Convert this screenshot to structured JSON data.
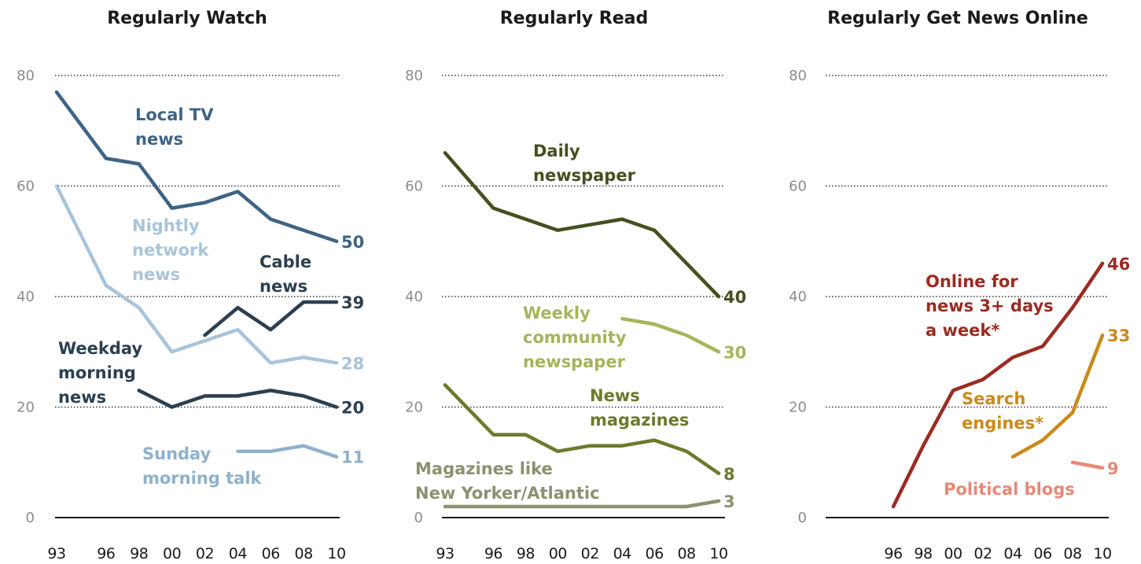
{
  "chart_data": [
    {
      "type": "line",
      "title": "Regularly Watch",
      "ylim": [
        0,
        80
      ],
      "yticks": [
        "0",
        "20",
        "40",
        "60",
        "80"
      ],
      "grid": true,
      "x_labels": [
        "93",
        "96",
        "98",
        "00",
        "02",
        "04",
        "06",
        "08",
        "10"
      ],
      "series": [
        {
          "name": "Local TV news",
          "color": "#3f6484",
          "x": [
            1993,
            1996,
            1998,
            2000,
            2002,
            2004,
            2006,
            2008,
            2010
          ],
          "values": [
            77,
            65,
            64,
            56,
            57,
            59,
            54,
            52,
            50
          ],
          "end_label": "50",
          "label_lines": [
            "Local TV",
            "news"
          ]
        },
        {
          "name": "Nightly network news",
          "color": "#a9c4d9",
          "x": [
            1993,
            1996,
            1998,
            2000,
            2002,
            2004,
            2006,
            2008,
            2010
          ],
          "values": [
            60,
            42,
            38,
            30,
            32,
            34,
            28,
            29,
            28
          ],
          "end_label": "28",
          "label_lines": [
            "Nightly",
            "network",
            "news"
          ]
        },
        {
          "name": "Cable news",
          "color": "#2b3f4f",
          "x": [
            2002,
            2004,
            2006,
            2008,
            2010
          ],
          "values": [
            33,
            38,
            34,
            39,
            39
          ],
          "end_label": "39",
          "label_lines": [
            "Cable",
            "news"
          ]
        },
        {
          "name": "Weekday morning news",
          "color": "#2b3f4f",
          "x": [
            1998,
            2000,
            2002,
            2004,
            2006,
            2008,
            2010
          ],
          "values": [
            23,
            20,
            22,
            22,
            23,
            22,
            20
          ],
          "end_label": "20",
          "label_lines": [
            "Weekday",
            "morning",
            "news"
          ]
        },
        {
          "name": "Sunday morning talk",
          "color": "#8fb1cb",
          "x": [
            2004,
            2006,
            2008,
            2010
          ],
          "values": [
            12,
            12,
            13,
            11
          ],
          "end_label": "11",
          "label_lines": [
            "Sunday",
            "morning talk"
          ]
        }
      ]
    },
    {
      "type": "line",
      "title": "Regularly Read",
      "ylim": [
        0,
        80
      ],
      "yticks": [
        "0",
        "20",
        "40",
        "60",
        "80"
      ],
      "grid": true,
      "x_labels": [
        "93",
        "96",
        "98",
        "00",
        "02",
        "04",
        "06",
        "08",
        "10"
      ],
      "series": [
        {
          "name": "Daily newspaper",
          "color": "#44501f",
          "x": [
            1993,
            1996,
            1998,
            2000,
            2002,
            2004,
            2006,
            2008,
            2010
          ],
          "values": [
            66,
            56,
            54,
            52,
            53,
            54,
            52,
            46,
            40
          ],
          "end_label": "40",
          "label_lines": [
            "Daily",
            "newspaper"
          ]
        },
        {
          "name": "Weekly community newspaper",
          "color": "#a7b45a",
          "x": [
            2004,
            2006,
            2008,
            2010
          ],
          "values": [
            36,
            35,
            33,
            30
          ],
          "end_label": "30",
          "label_lines": [
            "Weekly",
            "community",
            "newspaper"
          ]
        },
        {
          "name": "News magazines",
          "color": "#6b7a2c",
          "x": [
            1993,
            1996,
            1998,
            2000,
            2002,
            2004,
            2006,
            2008,
            2010
          ],
          "values": [
            24,
            15,
            15,
            12,
            13,
            13,
            14,
            12,
            8
          ],
          "end_label": "8",
          "label_lines": [
            "News",
            "magazines"
          ]
        },
        {
          "name": "Magazines like New Yorker/Atlantic",
          "color": "#8a9270",
          "x": [
            1993,
            1996,
            1998,
            2000,
            2002,
            2004,
            2006,
            2008,
            2010
          ],
          "values": [
            2,
            2,
            2,
            2,
            2,
            2,
            2,
            2,
            3
          ],
          "end_label": "3",
          "label_lines": [
            "Magazines like",
            "New Yorker/Atlantic"
          ]
        }
      ]
    },
    {
      "type": "line",
      "title": "Regularly Get News Online",
      "ylim": [
        0,
        80
      ],
      "yticks": [
        "0",
        "20",
        "40",
        "60",
        "80"
      ],
      "grid": true,
      "x_labels": [
        "96",
        "98",
        "00",
        "02",
        "04",
        "06",
        "08",
        "10"
      ],
      "series": [
        {
          "name": "Online for news 3+ days a week*",
          "color": "#9b2b22",
          "x": [
            1996,
            1998,
            2000,
            2002,
            2004,
            2006,
            2008,
            2010
          ],
          "values": [
            2,
            13,
            23,
            25,
            29,
            31,
            38,
            46
          ],
          "end_label": "46",
          "label_lines": [
            "Online for",
            "news 3+ days",
            "a week*"
          ]
        },
        {
          "name": "Search engines*",
          "color": "#c98a1a",
          "x": [
            2004,
            2006,
            2008,
            2010
          ],
          "values": [
            11,
            14,
            19,
            33
          ],
          "end_label": "33",
          "label_lines": [
            "Search",
            "engines*"
          ]
        },
        {
          "name": "Political blogs",
          "color": "#e88878",
          "x": [
            2008,
            2010
          ],
          "values": [
            10,
            9
          ],
          "end_label": "9",
          "label_lines": [
            "Political blogs"
          ]
        }
      ]
    }
  ]
}
